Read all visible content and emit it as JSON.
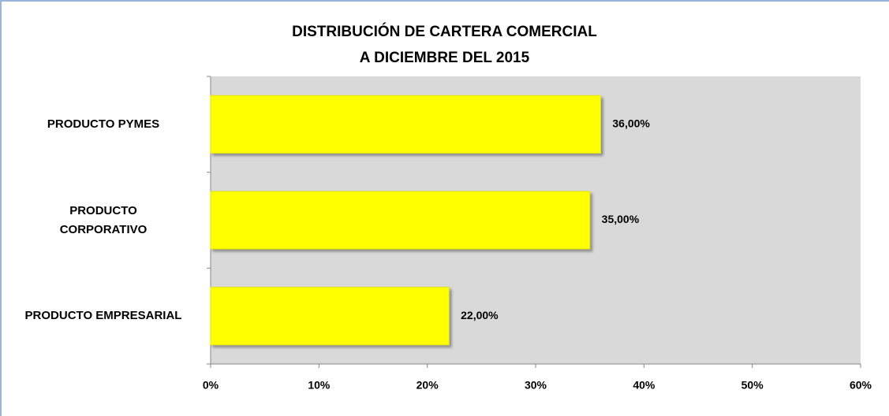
{
  "chart_data": {
    "type": "hbar",
    "title": "DISTRIBUCIÓN DE CARTERA COMERCIAL\nA DICIEMBRE DEL 2015",
    "categories": [
      "PRODUCTO PYMES",
      "PRODUCTO\nCORPORATIVO",
      "PRODUCTO EMPRESARIAL"
    ],
    "values": [
      36,
      35,
      22
    ],
    "value_labels": [
      "36,00%",
      "35,00%",
      "22,00%"
    ],
    "color": "#ffff00",
    "xlim": [
      0,
      60
    ],
    "xticks": [
      {
        "value": 0,
        "label": "0%"
      },
      {
        "value": 10,
        "label": "10%"
      },
      {
        "value": 20,
        "label": "20%"
      },
      {
        "value": 30,
        "label": "30%"
      },
      {
        "value": 40,
        "label": "40%"
      },
      {
        "value": 50,
        "label": "50%"
      },
      {
        "value": 60,
        "label": "60%"
      }
    ],
    "plot_background": "#d9d9d9"
  }
}
